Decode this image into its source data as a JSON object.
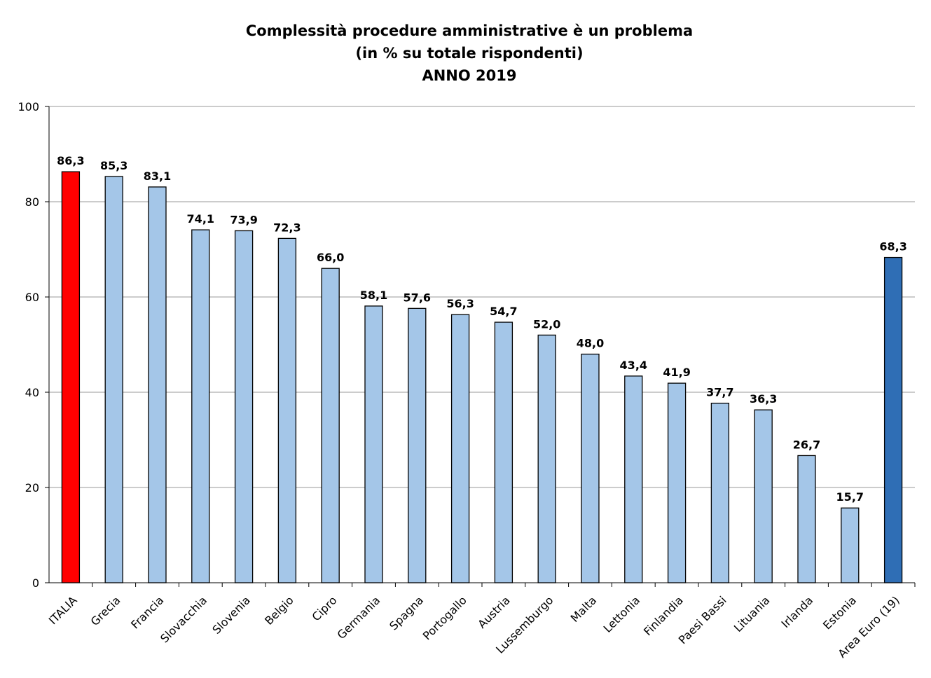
{
  "chart_data": {
    "type": "bar",
    "title": "Complessità procedure amministrative è un problema",
    "subtitle": "(in % su totale rispondenti)",
    "year_label": "ANNO 2019",
    "top_cut_text": "",
    "xlabel": "",
    "ylabel": "",
    "ylim": [
      0,
      100
    ],
    "yticks": [
      "0",
      "20",
      "40",
      "60",
      "80",
      "100"
    ],
    "grid": true,
    "legend": "none",
    "categories": [
      "ITALIA",
      "Grecia",
      "Francia",
      "Slovacchia",
      "Slovenia",
      "Belgio",
      "Cipro",
      "Germania",
      "Spagna",
      "Portogallo",
      "Austria",
      "Lussemburgo",
      "Malta",
      "Lettonia",
      "Finlandia",
      "Paesi Bassi",
      "Lituania",
      "Irlanda",
      "Estonia",
      "Area Euro (19)"
    ],
    "values": [
      86.3,
      85.3,
      83.1,
      74.1,
      73.9,
      72.3,
      66.0,
      58.1,
      57.6,
      56.3,
      54.7,
      52.0,
      48.0,
      43.4,
      41.9,
      37.7,
      36.3,
      26.7,
      15.7,
      68.3
    ],
    "value_labels": [
      "86,3",
      "85,3",
      "83,1",
      "74,1",
      "73,9",
      "72,3",
      "66,0",
      "58,1",
      "57,6",
      "56,3",
      "54,7",
      "52,0",
      "48,0",
      "43,4",
      "41,9",
      "37,7",
      "36,3",
      "26,7",
      "15,7",
      "68,3"
    ],
    "colors": {
      "highlight": "#ff0000",
      "default": "#a4c6e8",
      "aggregate": "#2f6eb5",
      "grid": "#9a9a9a",
      "bar_stroke": "#000000"
    },
    "bar_color_keys": [
      "highlight",
      "default",
      "default",
      "default",
      "default",
      "default",
      "default",
      "default",
      "default",
      "default",
      "default",
      "default",
      "default",
      "default",
      "default",
      "default",
      "default",
      "default",
      "default",
      "aggregate"
    ]
  }
}
